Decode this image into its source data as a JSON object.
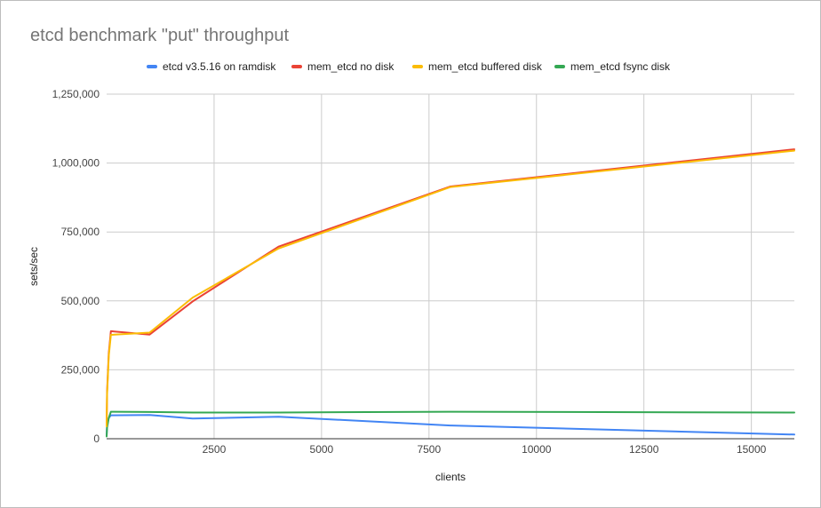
{
  "chart_data": {
    "type": "line",
    "title": "etcd benchmark \"put\" throughput",
    "xlabel": "clients",
    "ylabel": "sets/sec",
    "xlim": [
      0,
      16000
    ],
    "ylim": [
      0,
      1250000
    ],
    "x_ticks": [
      2500,
      5000,
      7500,
      10000,
      12500,
      15000
    ],
    "x_tick_labels": [
      "2500",
      "5000",
      "7500",
      "10000",
      "12500",
      "15000"
    ],
    "y_ticks": [
      0,
      250000,
      500000,
      750000,
      1000000,
      1250000
    ],
    "y_tick_labels": [
      "0",
      "250,000",
      "500,000",
      "750,000",
      "1,000,000",
      "1,250,000"
    ],
    "grid": true,
    "legend_position": "top",
    "series": [
      {
        "name": "etcd v3.5.16 on ramdisk",
        "color": "#4285f4",
        "x": [
          1,
          10,
          50,
          100,
          1000,
          2000,
          4000,
          8000,
          16000
        ],
        "y": [
          12000,
          55000,
          75000,
          85000,
          86000,
          73000,
          80000,
          48000,
          15000
        ]
      },
      {
        "name": "mem_etcd no disk",
        "color": "#ea4335",
        "x": [
          1,
          10,
          50,
          100,
          1000,
          2000,
          4000,
          8000,
          16000
        ],
        "y": [
          50000,
          170000,
          310000,
          390000,
          378000,
          498000,
          697000,
          915000,
          1050000
        ]
      },
      {
        "name": "mem_etcd buffered disk",
        "color": "#fbbc04",
        "x": [
          1,
          10,
          50,
          100,
          1000,
          2000,
          4000,
          8000,
          16000
        ],
        "y": [
          45000,
          160000,
          300000,
          377000,
          385000,
          512000,
          690000,
          913000,
          1045000
        ]
      },
      {
        "name": "mem_etcd fsync disk",
        "color": "#34a853",
        "x": [
          1,
          10,
          50,
          100,
          1000,
          2000,
          4000,
          8000,
          16000
        ],
        "y": [
          8000,
          40000,
          75000,
          98000,
          97000,
          95000,
          95000,
          98000,
          95000
        ]
      }
    ]
  }
}
